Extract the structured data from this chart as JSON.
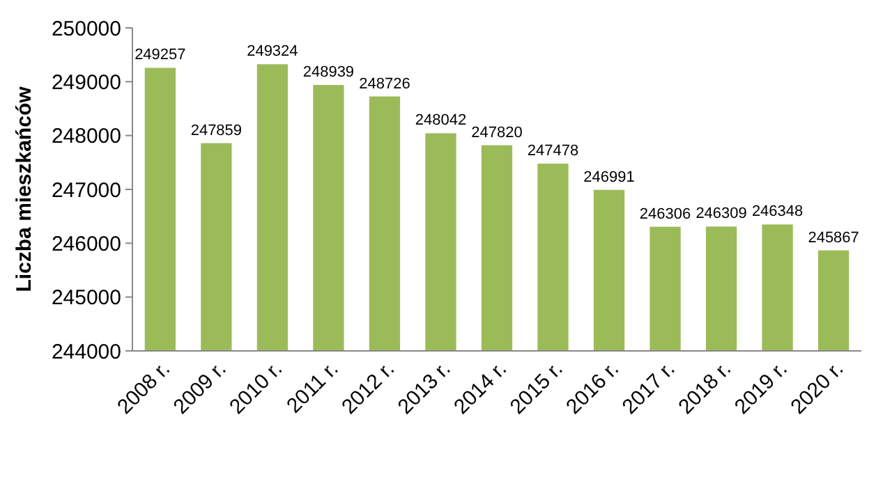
{
  "chart_data": {
    "type": "bar",
    "ylabel": "Liczba mieszkańców",
    "categories": [
      "2008 r.",
      "2009 r.",
      "2010 r.",
      "2011 r.",
      "2012 r.",
      "2013 r.",
      "2014 r.",
      "2015 r.",
      "2016 r.",
      "2017 r.",
      "2018 r.",
      "2019 r.",
      "2020 r."
    ],
    "values": [
      249257,
      247859,
      249324,
      248939,
      248726,
      248042,
      247820,
      247478,
      246991,
      246306,
      246309,
      246348,
      245867
    ],
    "color": "#9bbb59",
    "ylim": [
      244000,
      250000
    ],
    "yticks": [
      244000,
      245000,
      246000,
      247000,
      248000,
      249000,
      250000
    ],
    "grid": false,
    "data_labels": true
  }
}
